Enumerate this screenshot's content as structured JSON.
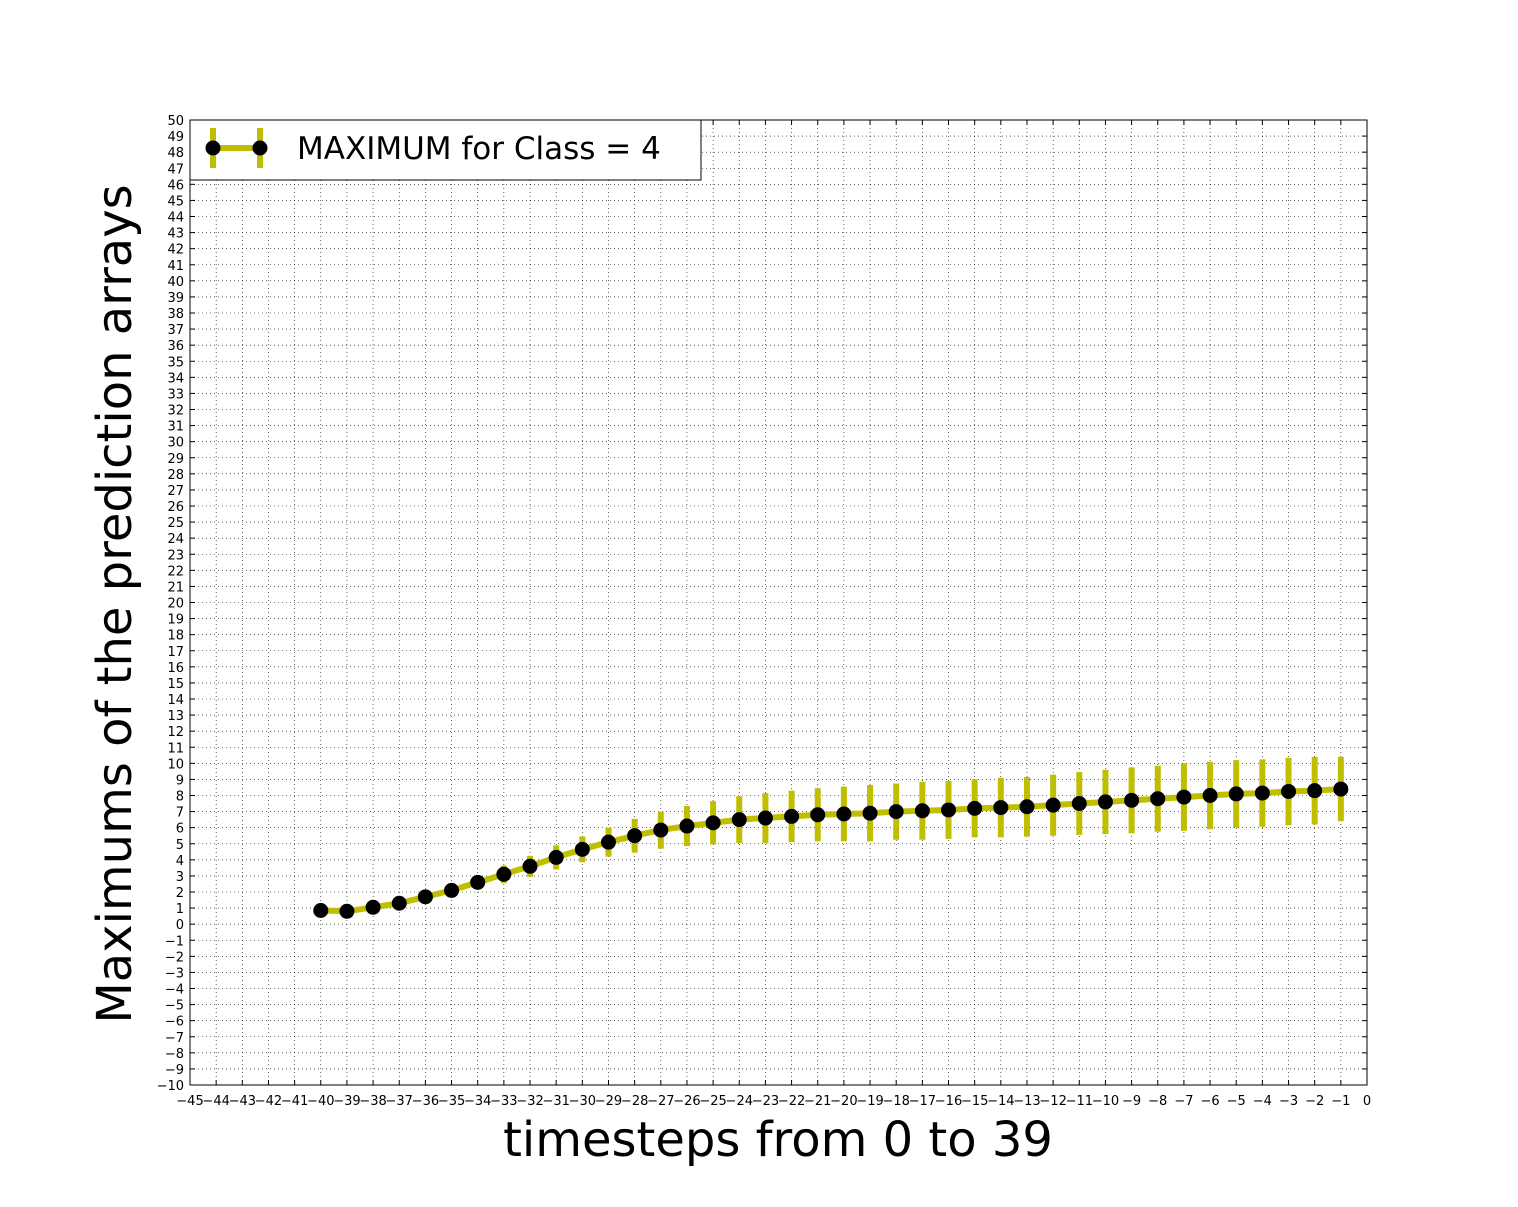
{
  "chart_data": {
    "type": "line",
    "xlabel": "timesteps from 0 to 39",
    "ylabel": "Maximums of the prediction arrays",
    "xlim": [
      -45,
      0
    ],
    "ylim": [
      -10,
      50
    ],
    "xticks": [
      -45,
      -44,
      -43,
      -42,
      -41,
      -40,
      -39,
      -38,
      -37,
      -36,
      -35,
      -34,
      -33,
      -32,
      -31,
      -30,
      -29,
      -28,
      -27,
      -26,
      -25,
      -24,
      -23,
      -22,
      -21,
      -20,
      -19,
      -18,
      -17,
      -16,
      -15,
      -14,
      -13,
      -12,
      -11,
      -10,
      -9,
      -8,
      -7,
      -6,
      -5,
      -4,
      -3,
      -2,
      -1,
      0
    ],
    "yticks": [
      -10,
      -9,
      -8,
      -7,
      -6,
      -5,
      -4,
      -3,
      -2,
      -1,
      0,
      1,
      2,
      3,
      4,
      5,
      6,
      7,
      8,
      9,
      10,
      11,
      12,
      13,
      14,
      15,
      16,
      17,
      18,
      19,
      20,
      21,
      22,
      23,
      24,
      25,
      26,
      27,
      28,
      29,
      30,
      31,
      32,
      33,
      34,
      35,
      36,
      37,
      38,
      39,
      40,
      41,
      42,
      43,
      44,
      45,
      46,
      47,
      48,
      49,
      50
    ],
    "grid": true,
    "legend_position": "top-left",
    "colors": {
      "line": "#bfbf00",
      "marker": "#000000"
    },
    "series": [
      {
        "name": "MAXIMUM for Class = 4",
        "x": [
          -40,
          -39,
          -38,
          -37,
          -36,
          -35,
          -34,
          -33,
          -32,
          -31,
          -30,
          -29,
          -28,
          -27,
          -26,
          -25,
          -24,
          -23,
          -22,
          -21,
          -20,
          -19,
          -18,
          -17,
          -16,
          -15,
          -14,
          -13,
          -12,
          -11,
          -10,
          -9,
          -8,
          -7,
          -6,
          -5,
          -4,
          -3,
          -2,
          -1
        ],
        "y": [
          0.85,
          0.8,
          1.05,
          1.3,
          1.7,
          2.1,
          2.6,
          3.1,
          3.6,
          4.15,
          4.65,
          5.1,
          5.5,
          5.85,
          6.1,
          6.3,
          6.5,
          6.6,
          6.7,
          6.8,
          6.85,
          6.9,
          7.0,
          7.05,
          7.1,
          7.2,
          7.25,
          7.3,
          7.4,
          7.5,
          7.6,
          7.7,
          7.8,
          7.9,
          8.0,
          8.1,
          8.15,
          8.25,
          8.3,
          8.4
        ],
        "err": [
          0.1,
          0.1,
          0.1,
          0.15,
          0.2,
          0.3,
          0.4,
          0.55,
          0.65,
          0.75,
          0.8,
          0.9,
          1.05,
          1.15,
          1.25,
          1.35,
          1.45,
          1.55,
          1.6,
          1.65,
          1.7,
          1.75,
          1.75,
          1.8,
          1.8,
          1.8,
          1.85,
          1.85,
          1.9,
          1.95,
          2.0,
          2.05,
          2.05,
          2.1,
          2.1,
          2.1,
          2.1,
          2.1,
          2.1,
          2.0
        ]
      }
    ]
  }
}
